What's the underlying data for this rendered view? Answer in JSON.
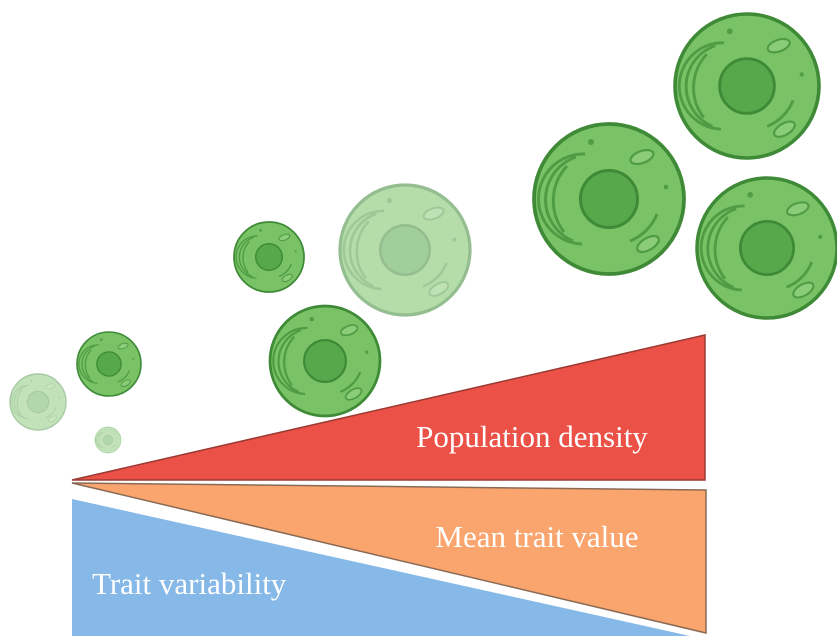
{
  "labels": {
    "population_density": "Population density",
    "mean_trait_value": "Mean trait value",
    "trait_variability": "Trait variability"
  }
}
